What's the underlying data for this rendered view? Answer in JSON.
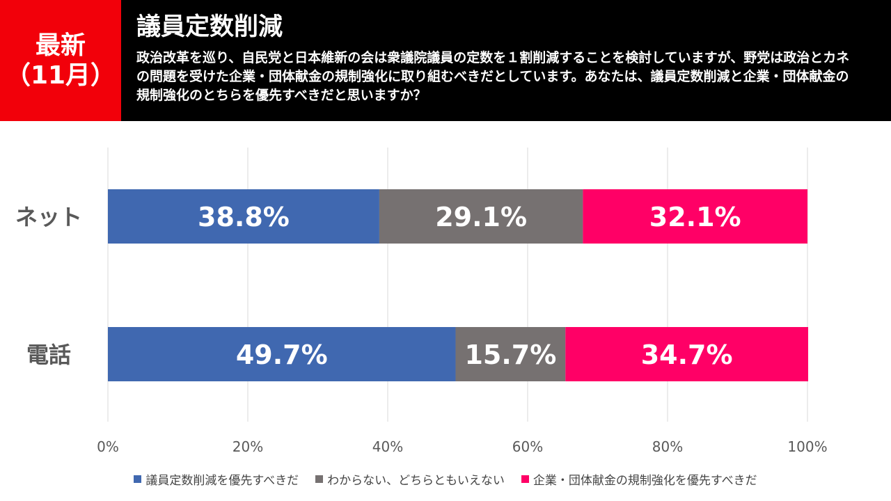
{
  "header": {
    "badge_line1": "最新",
    "badge_line2": "（11月）",
    "title": "議員定数削減",
    "question": "政治改革を巡り、自民党と日本維新の会は衆議院議員の定数を１割削減することを検討していますが、野党は政治とカネの問題を受けた企業・団体献金の規制強化に取り組むべきだとしています。あなたは、議員定数削減と企業・団体献金の規制強化のとちらを優先すべきだと思いますか？"
  },
  "colors": {
    "header_bg": "#000000",
    "badge_bg": "#f2000a",
    "series": [
      "#4068b0",
      "#767171",
      "#ff0066"
    ]
  },
  "chart_data": {
    "type": "bar",
    "orientation": "horizontal",
    "stacked": true,
    "categories": [
      "ネット",
      "電話"
    ],
    "series": [
      {
        "name": "議員定数削減を優先すべきだ",
        "values": [
          38.8,
          49.7
        ],
        "labels": [
          "38.8%",
          "49.7%"
        ]
      },
      {
        "name": "わからない、どちらともいえない",
        "values": [
          29.1,
          15.7
        ],
        "labels": [
          "29.1%",
          "15.7%"
        ]
      },
      {
        "name": "企業・団体献金の規制強化を優先すべきだ",
        "values": [
          32.1,
          34.7
        ],
        "labels": [
          "32.1%",
          "34.7%"
        ]
      }
    ],
    "xlim": [
      0,
      100
    ],
    "xticks": [
      "0%",
      "20%",
      "40%",
      "60%",
      "80%",
      "100%"
    ],
    "grid": true,
    "legend_position": "bottom"
  }
}
